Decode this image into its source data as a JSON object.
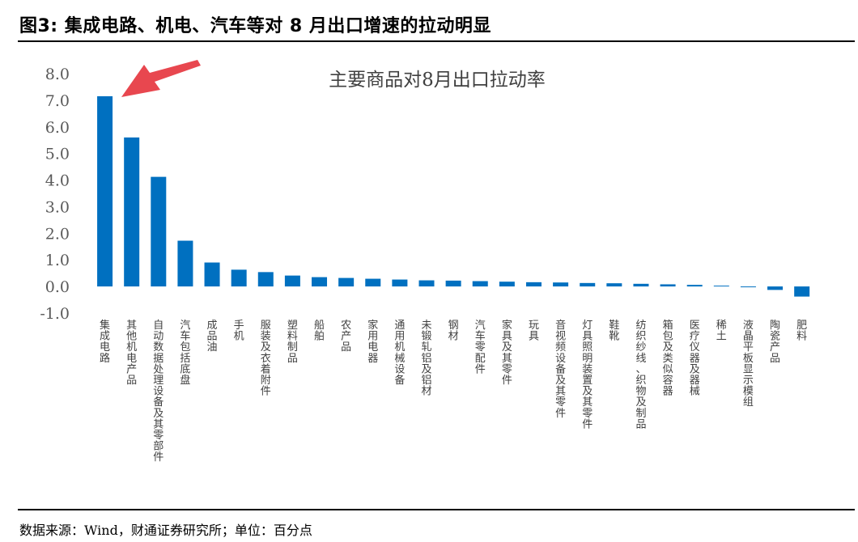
{
  "header": {
    "title": "图3: 集成电路、机电、汽车等对 8 月出口增速的拉动明显"
  },
  "footer": {
    "source": "数据来源：Wind，财通证券研究所；单位：百分点"
  },
  "colors": {
    "bar": "#0070C0",
    "arrow": "#E8474F",
    "axis_text": "#595959"
  },
  "chart_data": {
    "type": "bar",
    "title": "主要商品对8月出口拉动率",
    "xlabel": "",
    "ylabel": "",
    "ylim": [
      -1.0,
      8.0
    ],
    "yticks": [
      "8.0",
      "7.0",
      "6.0",
      "5.0",
      "4.0",
      "3.0",
      "2.0",
      "1.0",
      "0.0",
      "-1.0"
    ],
    "grid": false,
    "annotation": "arrow pointing to 集成电路",
    "categories": [
      "集成电路",
      "其他机电产品",
      "自动数据处理设备及其零部件",
      "汽车包括底盘",
      "成品油",
      "手机",
      "服装及衣着附件",
      "塑料制品",
      "船舶",
      "农产品",
      "家用电器",
      "通用机械设备",
      "未锻轧铝及铝材",
      "钢材",
      "汽车零配件",
      "家具及其零件",
      "玩具",
      "音视频设备及其零件",
      "灯具照明装置及其零件",
      "鞋靴",
      "纺织纱线、织物及制品",
      "箱包及类似容器",
      "医疗仪器及器械",
      "稀土",
      "液晶平板显示模组",
      "陶瓷产品",
      "肥料"
    ],
    "values": [
      7.15,
      5.6,
      4.12,
      1.72,
      0.9,
      0.63,
      0.54,
      0.41,
      0.35,
      0.32,
      0.29,
      0.26,
      0.23,
      0.22,
      0.2,
      0.18,
      0.16,
      0.15,
      0.13,
      0.12,
      0.1,
      0.08,
      0.06,
      0.03,
      -0.02,
      -0.13,
      -0.38
    ]
  }
}
